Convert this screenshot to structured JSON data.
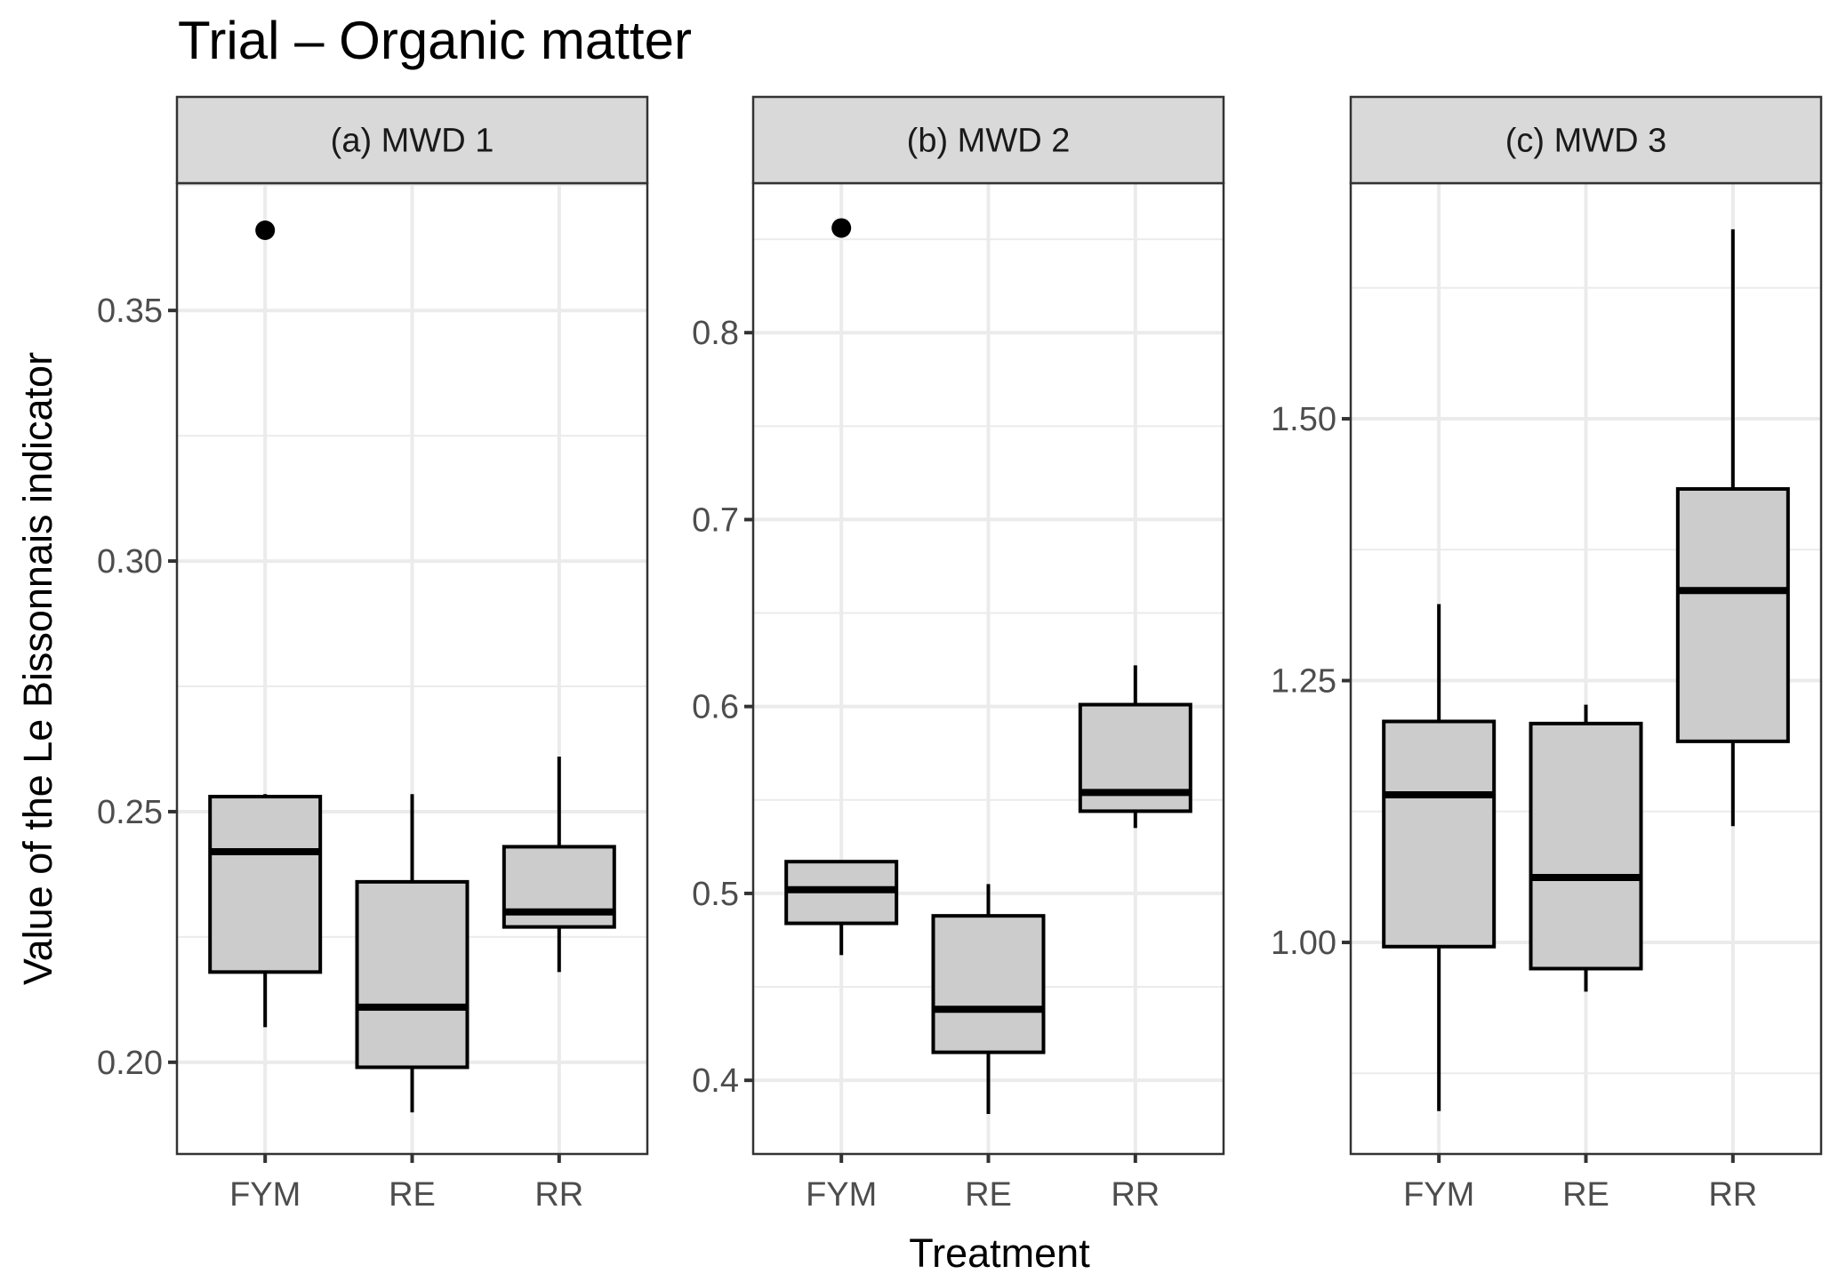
{
  "chart_data": {
    "type": "boxplot",
    "title": "Trial – Organic matter",
    "xlabel": "Treatment",
    "ylabel": "Value of the Le Bissonnais indicator",
    "categories": [
      "FYM",
      "RE",
      "RR"
    ],
    "grid": true,
    "legend": "none",
    "colors": {
      "box_fill": "#cccccc",
      "box_line": "#000000",
      "strip_fill": "#d9d9d9",
      "grid": "#ebebeb",
      "panel_border": "#333333",
      "tick_text": "#4d4d4d"
    },
    "panels": [
      {
        "label": "(a) MWD 1",
        "ylim": [
          0.1817,
          0.3754
        ],
        "yticks": [
          0.2,
          0.25,
          0.3,
          0.35
        ],
        "ytick_labels": [
          "0.20",
          "0.25",
          "0.30",
          "0.35"
        ],
        "yminor": [
          0.225,
          0.275,
          0.325,
          0.375
        ],
        "boxes": [
          {
            "category": "FYM",
            "whisker_low": 0.207,
            "q1": 0.218,
            "median": 0.242,
            "q3": 0.253,
            "whisker_high": 0.2535,
            "outliers": [
              0.366
            ]
          },
          {
            "category": "RE",
            "whisker_low": 0.19,
            "q1": 0.199,
            "median": 0.211,
            "q3": 0.236,
            "whisker_high": 0.2535,
            "outliers": []
          },
          {
            "category": "RR",
            "whisker_low": 0.218,
            "q1": 0.227,
            "median": 0.23,
            "q3": 0.243,
            "whisker_high": 0.261,
            "outliers": []
          }
        ]
      },
      {
        "label": "(b) MWD 2",
        "ylim": [
          0.3606,
          0.88
        ],
        "yticks": [
          0.4,
          0.5,
          0.6,
          0.7,
          0.8
        ],
        "ytick_labels": [
          "0.4",
          "0.5",
          "0.6",
          "0.7",
          "0.8"
        ],
        "yminor": [
          0.45,
          0.55,
          0.65,
          0.75,
          0.85
        ],
        "boxes": [
          {
            "category": "FYM",
            "whisker_low": 0.467,
            "q1": 0.484,
            "median": 0.502,
            "q3": 0.517,
            "whisker_high": 0.517,
            "outliers": [
              0.856
            ]
          },
          {
            "category": "RE",
            "whisker_low": 0.382,
            "q1": 0.415,
            "median": 0.438,
            "q3": 0.488,
            "whisker_high": 0.505,
            "outliers": []
          },
          {
            "category": "RR",
            "whisker_low": 0.535,
            "q1": 0.544,
            "median": 0.554,
            "q3": 0.601,
            "whisker_high": 0.622,
            "outliers": []
          }
        ]
      },
      {
        "label": "(c) MWD 3",
        "ylim": [
          0.798,
          1.725
        ],
        "yticks": [
          1.0,
          1.25,
          1.5
        ],
        "ytick_labels": [
          "1.00",
          "1.25",
          "1.50"
        ],
        "yminor": [
          0.875,
          1.125,
          1.375,
          1.625
        ],
        "boxes": [
          {
            "category": "FYM",
            "whisker_low": 0.839,
            "q1": 0.996,
            "median": 1.141,
            "q3": 1.211,
            "whisker_high": 1.323,
            "outliers": []
          },
          {
            "category": "RE",
            "whisker_low": 0.953,
            "q1": 0.975,
            "median": 1.062,
            "q3": 1.209,
            "whisker_high": 1.227,
            "outliers": []
          },
          {
            "category": "RR",
            "whisker_low": 1.111,
            "q1": 1.192,
            "median": 1.336,
            "q3": 1.433,
            "whisker_high": 1.681,
            "outliers": []
          }
        ]
      }
    ]
  }
}
